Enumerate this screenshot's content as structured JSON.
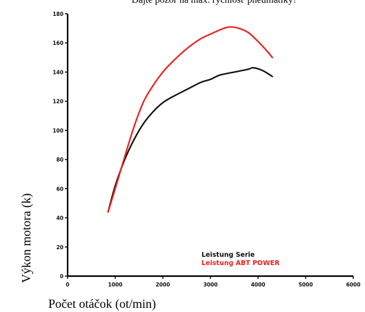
{
  "chart_data": {
    "type": "line",
    "title": "Dajte pozor na max. rýchlosť pneumatiky!",
    "xlabel": "Počet otáčok (ot/min)",
    "ylabel": "Výkon motora (k)",
    "xlim": [
      0,
      6000
    ],
    "ylim": [
      0,
      180
    ],
    "x_ticks": [
      "0",
      "1000",
      "2000",
      "3000",
      "4000",
      "5000",
      "6000"
    ],
    "y_ticks": [
      "0",
      "20",
      "40",
      "60",
      "80",
      "100",
      "120",
      "140",
      "160",
      "180"
    ],
    "grid": false,
    "legend_position": "bottom-right",
    "series": [
      {
        "name": "Leistung Serie",
        "color": "#111111",
        "points": [
          [
            850,
            44
          ],
          [
            1000,
            62
          ],
          [
            1200,
            80
          ],
          [
            1400,
            94
          ],
          [
            1600,
            105
          ],
          [
            1800,
            113
          ],
          [
            2000,
            119
          ],
          [
            2200,
            123
          ],
          [
            2500,
            128
          ],
          [
            2800,
            133
          ],
          [
            3000,
            135
          ],
          [
            3200,
            138
          ],
          [
            3500,
            140
          ],
          [
            3800,
            142
          ],
          [
            3900,
            143
          ],
          [
            4100,
            141
          ],
          [
            4300,
            137
          ]
        ]
      },
      {
        "name": "Leistung ABT POWER",
        "color": "#e8201f",
        "points": [
          [
            850,
            44
          ],
          [
            1000,
            60
          ],
          [
            1200,
            82
          ],
          [
            1400,
            103
          ],
          [
            1600,
            120
          ],
          [
            1800,
            131
          ],
          [
            2000,
            140
          ],
          [
            2200,
            147
          ],
          [
            2500,
            156
          ],
          [
            2800,
            163
          ],
          [
            3000,
            166
          ],
          [
            3200,
            169
          ],
          [
            3400,
            171
          ],
          [
            3600,
            170
          ],
          [
            3800,
            167
          ],
          [
            4000,
            161
          ],
          [
            4200,
            154
          ],
          [
            4300,
            150
          ]
        ]
      }
    ]
  }
}
